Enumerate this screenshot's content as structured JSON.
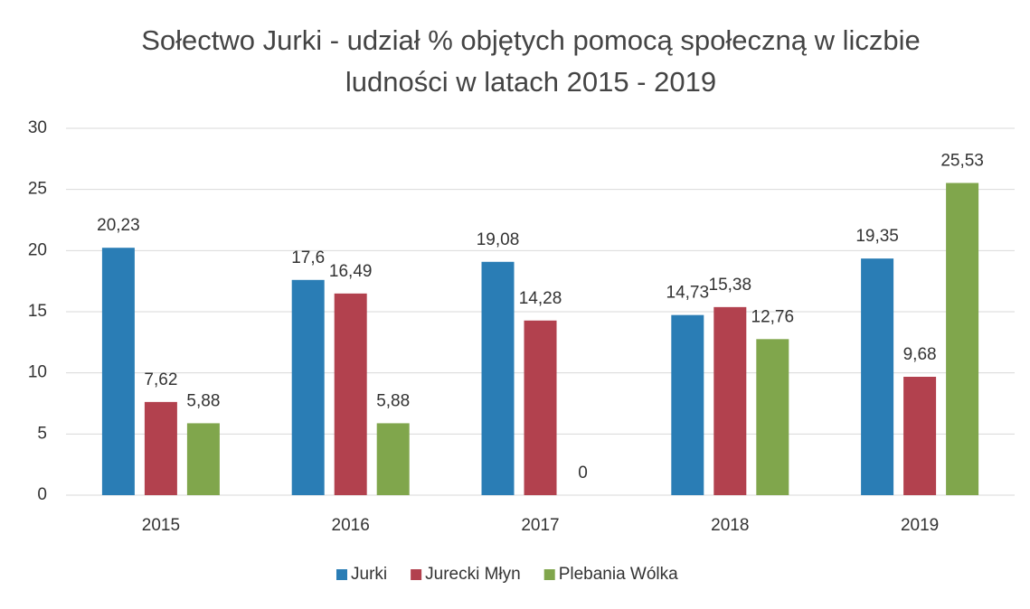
{
  "chart_data": {
    "type": "bar",
    "title": "Sołectwo Jurki - udział % objętych pomocą społeczną w liczbie ludności w latach 2015 - 2019",
    "categories": [
      "2015",
      "2016",
      "2017",
      "2018",
      "2019"
    ],
    "series": [
      {
        "name": "Jurki",
        "color": "#2a7db5",
        "values": [
          20.23,
          17.6,
          19.08,
          14.73,
          19.35
        ],
        "value_labels": [
          "20,23",
          "17,6",
          "19,08",
          "14,73",
          "19,35"
        ]
      },
      {
        "name": "Jurecki Młyn",
        "color": "#b2414e",
        "values": [
          7.62,
          16.49,
          14.28,
          15.38,
          9.68
        ],
        "value_labels": [
          "7,62",
          "16,49",
          "14,28",
          "15,38",
          "9,68"
        ]
      },
      {
        "name": "Plebania Wólka",
        "color": "#80a64c",
        "values": [
          5.88,
          5.88,
          0,
          12.76,
          25.53
        ],
        "value_labels": [
          "5,88",
          "5,88",
          "0",
          "12,76",
          "25,53"
        ]
      }
    ],
    "ylim": [
      0,
      30
    ],
    "yticks": [
      0,
      5,
      10,
      15,
      20,
      25,
      30
    ],
    "grid": true,
    "legend": "bottom"
  }
}
